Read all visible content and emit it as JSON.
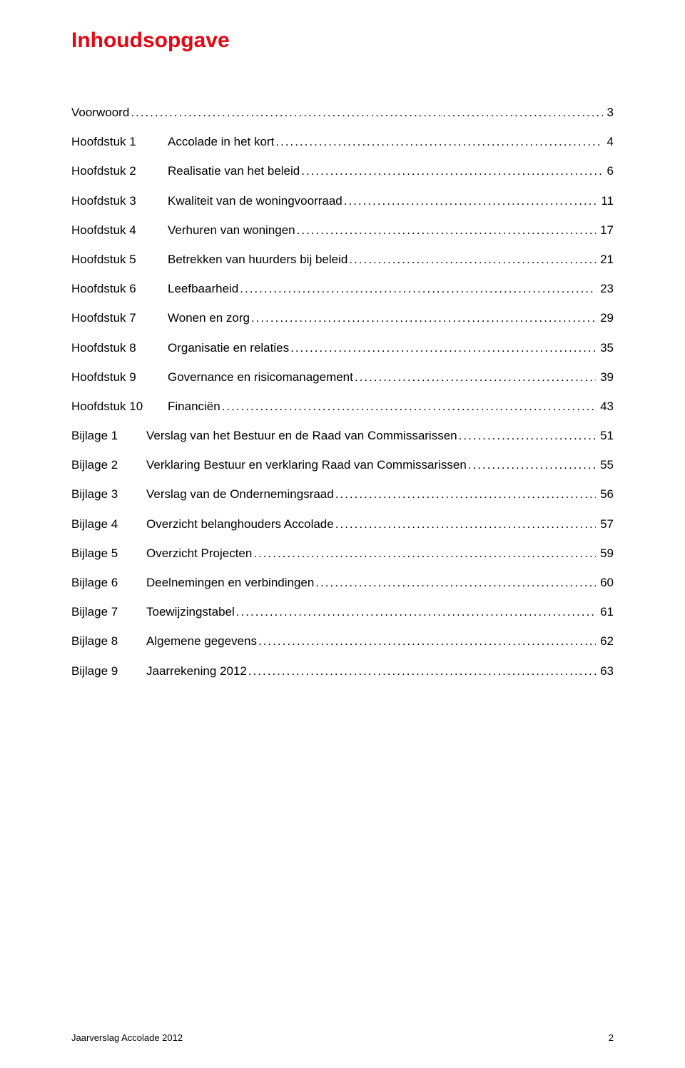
{
  "title_text": "Inhoudsopgave",
  "title_color": "#e30613",
  "body_color": "#000000",
  "background_color": "#ffffff",
  "font_family": "Segoe UI, Trebuchet MS, Lucida Sans, Arial, sans-serif",
  "title_fontsize_pt": 22,
  "body_fontsize_pt": 13,
  "footer": {
    "left": "Jaarverslag Accolade 2012",
    "page": "2"
  },
  "entries": [
    {
      "lead": "",
      "desc": "Voorwoord",
      "page": "3"
    },
    {
      "lead": "Hoofdstuk 1",
      "desc": "Accolade in het kort",
      "page": "4"
    },
    {
      "lead": "Hoofdstuk 2",
      "desc": "Realisatie van het beleid",
      "page": "6"
    },
    {
      "lead": "Hoofdstuk 3",
      "desc": "Kwaliteit van de woningvoorraad",
      "page": "11"
    },
    {
      "lead": "Hoofdstuk 4",
      "desc": "Verhuren van woningen",
      "page": "17"
    },
    {
      "lead": "Hoofdstuk 5",
      "desc": "Betrekken van huurders bij beleid",
      "page": "21"
    },
    {
      "lead": "Hoofdstuk 6",
      "desc": "Leefbaarheid",
      "page": "23"
    },
    {
      "lead": "Hoofdstuk 7",
      "desc": "Wonen en zorg",
      "page": "29"
    },
    {
      "lead": "Hoofdstuk 8",
      "desc": "Organisatie en relaties",
      "page": "35"
    },
    {
      "lead": "Hoofdstuk 9",
      "desc": "Governance en risicomanagement",
      "page": "39"
    },
    {
      "lead": "Hoofdstuk 10",
      "desc": "Financiën",
      "page": "43"
    },
    {
      "lead": "Bijlage 1",
      "desc": "Verslag van het Bestuur en de Raad van Commissarissen",
      "page": "51"
    },
    {
      "lead": "Bijlage 2",
      "desc": "Verklaring Bestuur en verklaring Raad van Commissarissen",
      "page": "55"
    },
    {
      "lead": "Bijlage 3",
      "desc": "Verslag van de Ondernemingsraad",
      "page": "56"
    },
    {
      "lead": "Bijlage 4",
      "desc": "Overzicht belanghouders Accolade",
      "page": "57"
    },
    {
      "lead": "Bijlage 5",
      "desc": "Overzicht Projecten",
      "page": "59"
    },
    {
      "lead": "Bijlage 6",
      "desc": "Deelnemingen en verbindingen",
      "page": "60"
    },
    {
      "lead": "Bijlage 7",
      "desc": "Toewijzingstabel",
      "page": "61"
    },
    {
      "lead": "Bijlage 8",
      "desc": "Algemene gegevens",
      "page": "62"
    },
    {
      "lead": "Bijlage 9",
      "desc": "Jaarrekening 2012",
      "page": "63"
    }
  ]
}
